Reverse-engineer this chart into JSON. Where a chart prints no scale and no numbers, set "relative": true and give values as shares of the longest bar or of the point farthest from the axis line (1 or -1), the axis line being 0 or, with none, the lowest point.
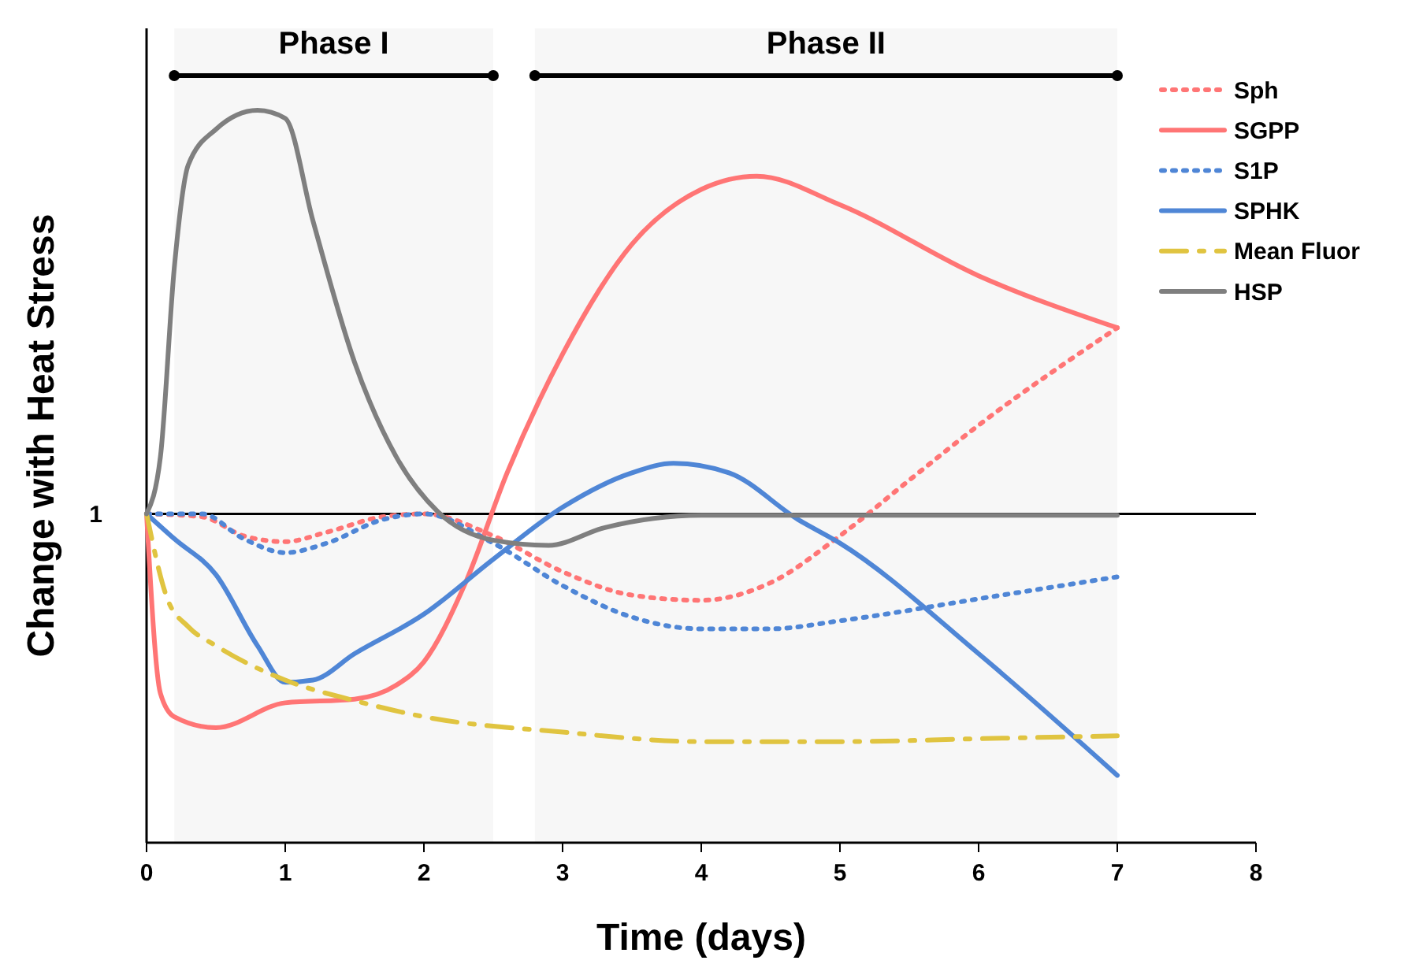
{
  "chart_data": {
    "type": "line",
    "relative": true,
    "xlabel": "Time (days)",
    "ylabel": "Change with Heat Stress",
    "xlim": [
      0,
      8
    ],
    "xticks": [
      0,
      1,
      2,
      3,
      4,
      5,
      6,
      7,
      8
    ],
    "legend": "top right",
    "grid": false,
    "marker": "none",
    "ref_lines": [
      {
        "axis": "y",
        "value": 0.449,
        "color": "#000000"
      }
    ],
    "annotations": [
      {
        "text": "1",
        "x": 0,
        "y": 0.449
      }
    ],
    "bands": [
      {
        "axis": "x",
        "from": 0.2,
        "to": 2.5,
        "label": "Phase I",
        "color": "#000000"
      },
      {
        "axis": "x",
        "from": 2.8,
        "to": 7,
        "label": "Phase II",
        "color": "#000000"
      }
    ],
    "series": [
      {
        "name": "Sph",
        "color": "#ff7575",
        "line_style": "dotted",
        "x": [
          0,
          0.4,
          0.7,
          1,
          1.3,
          1.7,
          2,
          2.5,
          3,
          3.5,
          4,
          4.5,
          5,
          5.5,
          6,
          7
        ],
        "values": [
          0.449,
          0.445,
          0.419,
          0.411,
          0.424,
          0.445,
          0.449,
          0.419,
          0.37,
          0.338,
          0.331,
          0.355,
          0.419,
          0.495,
          0.57,
          0.703
        ]
      },
      {
        "name": "SGPP",
        "color": "#ff7575",
        "line_style": "solid",
        "x": [
          0,
          0.1,
          0.2,
          0.5,
          1,
          1.5,
          1.8,
          2,
          2.3,
          2.6,
          3,
          3.5,
          4,
          4.4,
          5,
          6,
          7
        ],
        "values": [
          0.449,
          0.204,
          0.172,
          0.157,
          0.191,
          0.196,
          0.215,
          0.247,
          0.355,
          0.505,
          0.667,
          0.817,
          0.892,
          0.91,
          0.871,
          0.774,
          0.703
        ]
      },
      {
        "name": "S1P",
        "color": "#4f86d6",
        "line_style": "dotted",
        "x": [
          0,
          0.4,
          0.7,
          1,
          1.3,
          1.7,
          2,
          2.5,
          3,
          3.5,
          4,
          4.5,
          5,
          6,
          7
        ],
        "values": [
          0.449,
          0.449,
          0.415,
          0.396,
          0.409,
          0.441,
          0.449,
          0.409,
          0.351,
          0.308,
          0.292,
          0.292,
          0.303,
          0.333,
          0.363
        ]
      },
      {
        "name": "SPHK",
        "color": "#4f86d6",
        "line_style": "solid",
        "x": [
          0,
          0.2,
          0.5,
          0.8,
          1,
          1.2,
          1.5,
          2,
          2.5,
          3,
          3.5,
          3.8,
          4.2,
          4.7,
          5,
          6,
          7
        ],
        "values": [
          0.449,
          0.415,
          0.366,
          0.269,
          0.219,
          0.222,
          0.258,
          0.312,
          0.387,
          0.458,
          0.505,
          0.518,
          0.505,
          0.441,
          0.409,
          0.258,
          0.092
        ]
      },
      {
        "name": "Mean Fluor",
        "color": "#e0c440",
        "line_style": "dashed",
        "x": [
          0,
          0.15,
          0.3,
          0.5,
          1,
          1.5,
          2,
          3,
          4,
          5,
          6,
          7
        ],
        "values": [
          0.449,
          0.333,
          0.295,
          0.269,
          0.222,
          0.194,
          0.172,
          0.151,
          0.138,
          0.138,
          0.142,
          0.146
        ]
      },
      {
        "name": "HSP",
        "color": "#7f7f7f",
        "line_style": "solid",
        "x": [
          0,
          0.1,
          0.2,
          0.3,
          0.5,
          0.8,
          1,
          1.2,
          1.5,
          1.8,
          2.1,
          2.5,
          2.9,
          3.3,
          4,
          7
        ],
        "values": [
          0.449,
          0.527,
          0.785,
          0.925,
          0.974,
          1.0,
          0.989,
          0.849,
          0.656,
          0.527,
          0.452,
          0.413,
          0.406,
          0.43,
          0.447,
          0.447
        ]
      }
    ]
  }
}
